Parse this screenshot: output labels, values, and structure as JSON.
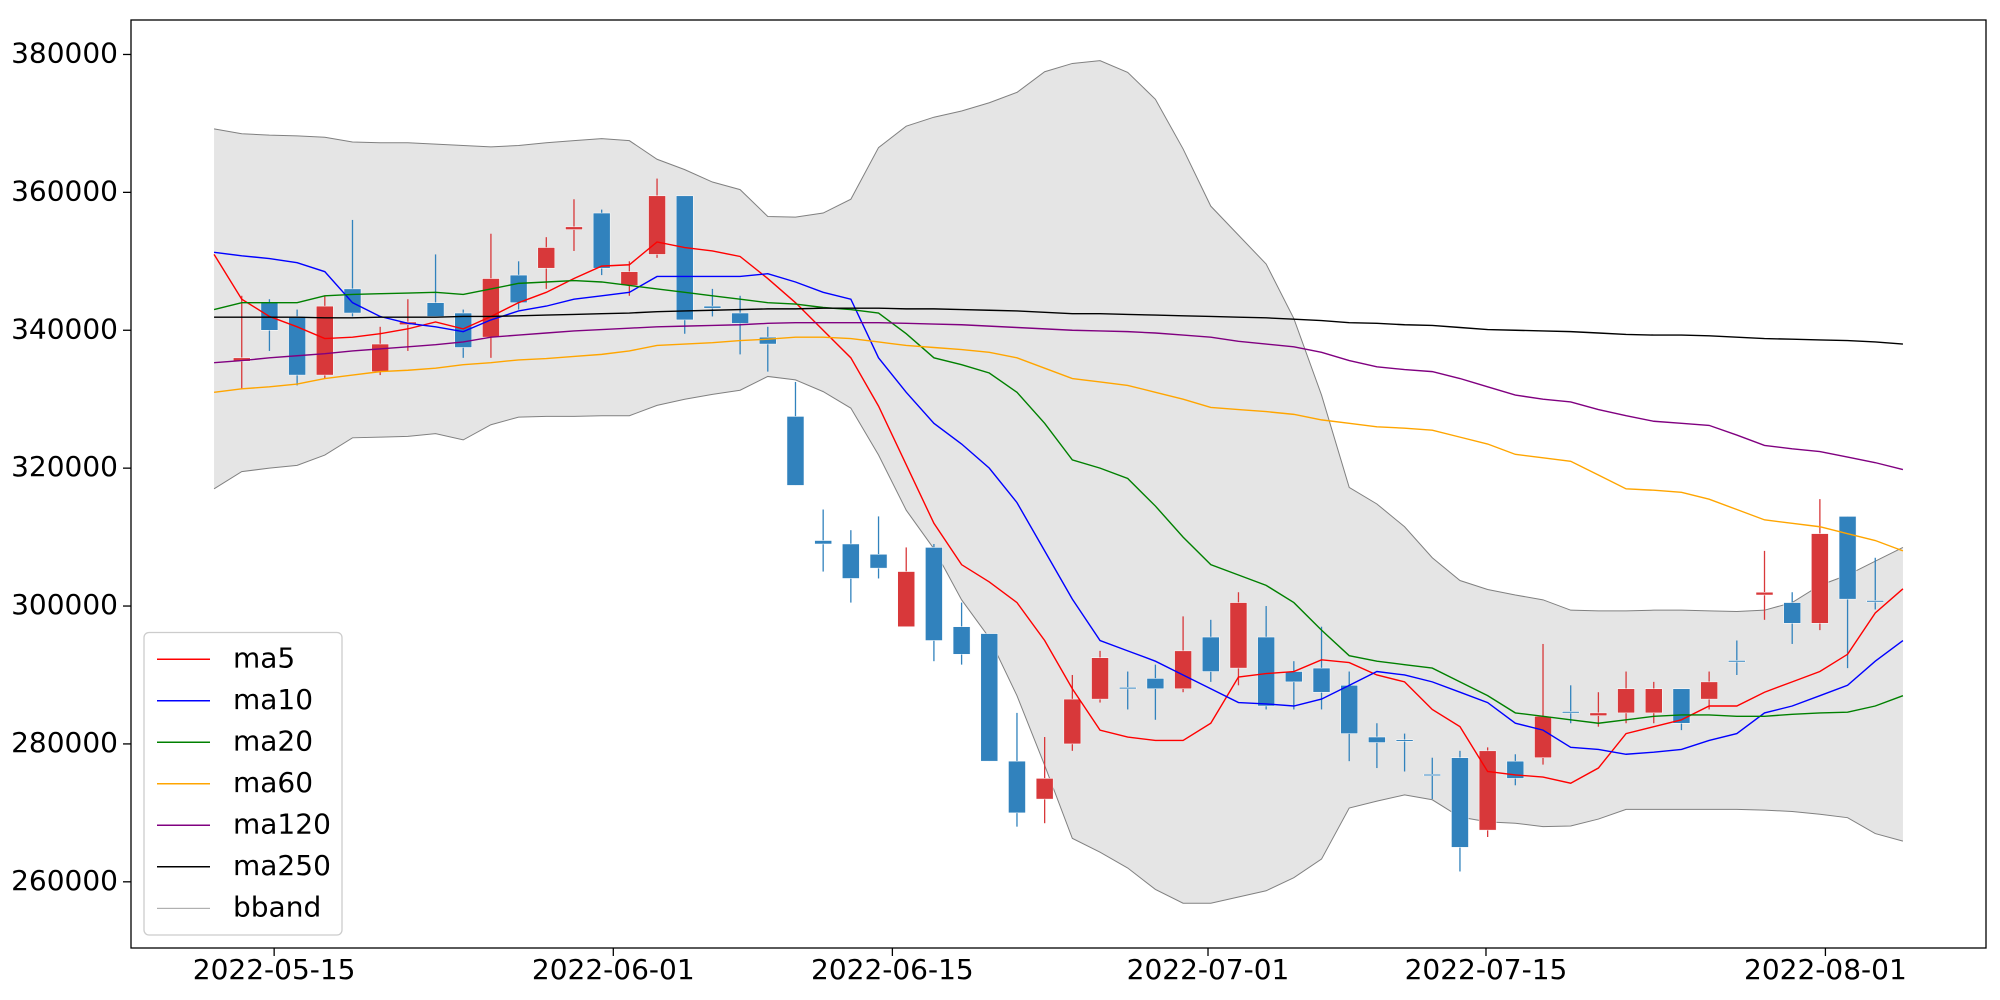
{
  "chart_data": {
    "type": "candlestick",
    "xlim": [
      -3,
      64
    ],
    "xticks": [
      {
        "value": 2.17,
        "label": "2022-05-15"
      },
      {
        "value": 14.42,
        "label": "2022-06-01"
      },
      {
        "value": 24.5,
        "label": "2022-06-15"
      },
      {
        "value": 35.9,
        "label": "2022-07-01"
      },
      {
        "value": 45.94,
        "label": "2022-07-15"
      },
      {
        "value": 58.2,
        "label": "2022-08-01"
      }
    ],
    "ylim": [
      250400,
      385000
    ],
    "yticks": [
      260000,
      280000,
      300000,
      320000,
      340000,
      360000,
      380000
    ],
    "legend": "lower left",
    "up_color": "#d8383a",
    "down_color": "#3182bd",
    "open": [
      null,
      335500,
      344000,
      342000,
      333500,
      346000,
      334000,
      340800,
      344000,
      342500,
      339000,
      348000,
      349000,
      354600,
      357000,
      346500,
      351000,
      359500,
      343500,
      342500,
      339000,
      327500,
      309500,
      309000,
      307500,
      297000,
      308500,
      297000,
      296000,
      277500,
      272000,
      280000,
      286500,
      288200,
      289500,
      288000,
      295500,
      291000,
      295500,
      290500,
      291000,
      288500,
      281000,
      280600,
      275600,
      278000,
      267500,
      277500,
      278000,
      284700,
      284100,
      284500,
      284500,
      288000,
      286500,
      292100,
      301600,
      300500,
      297500,
      313000,
      300800,
      null
    ],
    "high": [
      null,
      345000,
      344500,
      343000,
      345000,
      356000,
      340500,
      344500,
      351000,
      343000,
      354000,
      350000,
      353500,
      359000,
      357500,
      350000,
      362000,
      359500,
      346000,
      345000,
      340500,
      332500,
      314000,
      311000,
      313000,
      308500,
      309000,
      300500,
      296000,
      284500,
      281000,
      290000,
      293500,
      290500,
      291500,
      298500,
      298000,
      302000,
      300000,
      292000,
      297000,
      290500,
      283000,
      281500,
      278000,
      279000,
      279500,
      278500,
      294500,
      288500,
      287500,
      290500,
      289000,
      288000,
      290500,
      295000,
      308000,
      302000,
      315500,
      313000,
      307000,
      null
    ],
    "low": [
      null,
      331500,
      337000,
      332000,
      333000,
      342000,
      333500,
      337000,
      342000,
      336000,
      336000,
      343000,
      346000,
      351500,
      348000,
      345000,
      350500,
      339500,
      342000,
      336500,
      334000,
      317500,
      305000,
      300500,
      304000,
      297000,
      292000,
      291500,
      277500,
      268000,
      268500,
      279000,
      286000,
      285000,
      283500,
      287500,
      289000,
      288500,
      285000,
      285000,
      285000,
      277500,
      276500,
      276000,
      272000,
      261500,
      266500,
      274000,
      277000,
      283000,
      282500,
      283000,
      283000,
      282000,
      285000,
      290000,
      298000,
      294500,
      296500,
      291000,
      299500,
      null
    ],
    "close": [
      null,
      336000,
      340000,
      333500,
      343500,
      342500,
      338000,
      341200,
      342000,
      337500,
      347500,
      344000,
      352000,
      355000,
      349000,
      348500,
      359500,
      341500,
      343200,
      341000,
      338000,
      317500,
      309000,
      304000,
      305500,
      305000,
      295000,
      293000,
      277500,
      270000,
      275000,
      286500,
      292500,
      288000,
      288000,
      293500,
      290500,
      300500,
      285500,
      289000,
      287500,
      281500,
      280200,
      280400,
      275400,
      265000,
      279000,
      275000,
      284000,
      284500,
      284500,
      288000,
      288000,
      283000,
      289000,
      291900,
      302000,
      297500,
      310500,
      301000,
      300600,
      null
    ],
    "series": [
      {
        "name": "ma5",
        "color": "#ff0000",
        "values": [
          351000,
          344500,
          342000,
          340500,
          338800,
          339000,
          339500,
          340200,
          341200,
          340200,
          342000,
          344000,
          345500,
          347500,
          349300,
          349500,
          352800,
          352000,
          351500,
          350700,
          347500,
          344000,
          340000,
          336000,
          329000,
          320500,
          312000,
          306000,
          303500,
          300500,
          295000,
          288000,
          282000,
          281000,
          280500,
          280500,
          283000,
          289700,
          290200,
          290500,
          292200,
          291800,
          290000,
          289000,
          285000,
          282500,
          276000,
          275500,
          275200,
          274300,
          276500,
          281500,
          282500,
          283500,
          285500,
          285500,
          287500,
          289000,
          290500,
          293000,
          299000,
          302500
        ]
      },
      {
        "name": "ma10",
        "color": "#0000ff",
        "values": [
          351300,
          350800,
          350400,
          349800,
          348500,
          344000,
          342000,
          341000,
          340500,
          339800,
          341500,
          342800,
          343500,
          344500,
          345000,
          345500,
          347800,
          347800,
          347800,
          347800,
          348200,
          347000,
          345500,
          344500,
          336000,
          331000,
          326500,
          323500,
          320000,
          315000,
          308000,
          301000,
          295000,
          293500,
          292000,
          290000,
          288000,
          286000,
          285800,
          285500,
          286500,
          288500,
          290500,
          290000,
          289000,
          287500,
          286000,
          283000,
          282000,
          279500,
          279200,
          278500,
          278800,
          279200,
          280500,
          281500,
          284500,
          285500,
          287000,
          288500,
          292000,
          295000
        ]
      },
      {
        "name": "ma20",
        "color": "#008000",
        "values": [
          343000,
          344000,
          344000,
          344000,
          345000,
          345200,
          345300,
          345400,
          345500,
          345200,
          346000,
          346800,
          347000,
          347200,
          347000,
          346500,
          346000,
          345500,
          345000,
          344500,
          344000,
          343800,
          343300,
          343000,
          342500,
          339500,
          336000,
          335000,
          333800,
          331000,
          326500,
          321200,
          320000,
          318500,
          314500,
          310000,
          306000,
          304500,
          303000,
          300500,
          296500,
          292800,
          292000,
          291500,
          291000,
          289000,
          287000,
          284500,
          284000,
          283500,
          283000,
          283500,
          284000,
          284200,
          284200,
          284000,
          284000,
          284300,
          284500,
          284600,
          285500,
          287000
        ]
      },
      {
        "name": "ma60",
        "color": "#ffa500",
        "values": [
          331000,
          331500,
          331800,
          332200,
          333000,
          333500,
          334000,
          334200,
          334500,
          335000,
          335300,
          335700,
          335900,
          336200,
          336500,
          337000,
          337800,
          338000,
          338200,
          338500,
          338700,
          339000,
          339000,
          338800,
          338300,
          337800,
          337500,
          337200,
          336800,
          336000,
          334500,
          333000,
          332500,
          332000,
          331000,
          330000,
          328800,
          328500,
          328200,
          327800,
          327000,
          326500,
          326000,
          325800,
          325500,
          324500,
          323500,
          322000,
          321500,
          321000,
          319000,
          317000,
          316800,
          316500,
          315500,
          314000,
          312500,
          312000,
          311500,
          310500,
          309500,
          308000
        ]
      },
      {
        "name": "ma120",
        "color": "#800080",
        "values": [
          335300,
          335600,
          336000,
          336300,
          336600,
          337000,
          337300,
          337600,
          337900,
          338300,
          339000,
          339300,
          339600,
          339900,
          340100,
          340300,
          340500,
          340600,
          340700,
          340800,
          341000,
          341100,
          341100,
          341100,
          341100,
          341000,
          340900,
          340800,
          340600,
          340400,
          340200,
          340000,
          339900,
          339800,
          339600,
          339300,
          339000,
          338400,
          338000,
          337600,
          336800,
          335600,
          334700,
          334300,
          334000,
          333000,
          331800,
          330600,
          330000,
          329600,
          328500,
          327600,
          326800,
          326500,
          326200,
          324800,
          323300,
          322800,
          322400,
          321600,
          320800,
          319800
        ]
      },
      {
        "name": "ma250",
        "color": "#000000",
        "values": [
          341900,
          341900,
          341900,
          341900,
          341800,
          341800,
          341900,
          341900,
          341900,
          342000,
          342000,
          342100,
          342200,
          342300,
          342400,
          342500,
          342700,
          342800,
          342900,
          343000,
          343100,
          343100,
          343200,
          343200,
          343200,
          343100,
          343100,
          343000,
          342900,
          342800,
          342600,
          342400,
          342400,
          342300,
          342200,
          342100,
          342000,
          341900,
          341800,
          341600,
          341400,
          341100,
          341000,
          340800,
          340700,
          340400,
          340100,
          340000,
          339900,
          339800,
          339600,
          339400,
          339300,
          339300,
          339200,
          339000,
          338800,
          338700,
          338600,
          338500,
          338300,
          338000
        ]
      }
    ],
    "band": {
      "name": "bband",
      "color": "#808080",
      "fill": "#e5e5e5",
      "upper": [
        369200,
        368500,
        368300,
        368200,
        368000,
        367300,
        367200,
        367200,
        367000,
        366800,
        366600,
        366800,
        367200,
        367500,
        367800,
        367500,
        364800,
        363300,
        361500,
        360400,
        356500,
        356400,
        357000,
        359000,
        366500,
        369600,
        370900,
        371800,
        373000,
        374500,
        377500,
        378700,
        379100,
        377400,
        373500,
        366300,
        358000,
        353800,
        349600,
        341700,
        330600,
        317200,
        314800,
        311500,
        307000,
        303700,
        302400,
        301600,
        300900,
        299400,
        299300,
        299300,
        299400,
        299400,
        299300,
        299200,
        299400,
        300500,
        303000,
        304500,
        306500,
        308500
      ],
      "lower": [
        317000,
        319500,
        320000,
        320400,
        321900,
        324400,
        324500,
        324600,
        325000,
        324100,
        326300,
        327400,
        327500,
        327500,
        327600,
        327600,
        329100,
        330000,
        330700,
        331300,
        333300,
        332800,
        331100,
        328700,
        321900,
        313900,
        308300,
        300900,
        295400,
        287000,
        276900,
        266300,
        264300,
        262000,
        258900,
        256900,
        256900,
        257800,
        258700,
        260600,
        263300,
        270700,
        271700,
        272600,
        271900,
        269400,
        268700,
        268500,
        268000,
        268100,
        269100,
        270500,
        270500,
        270500,
        270500,
        270500,
        270400,
        270200,
        269800,
        269300,
        267000,
        265900
      ]
    }
  }
}
